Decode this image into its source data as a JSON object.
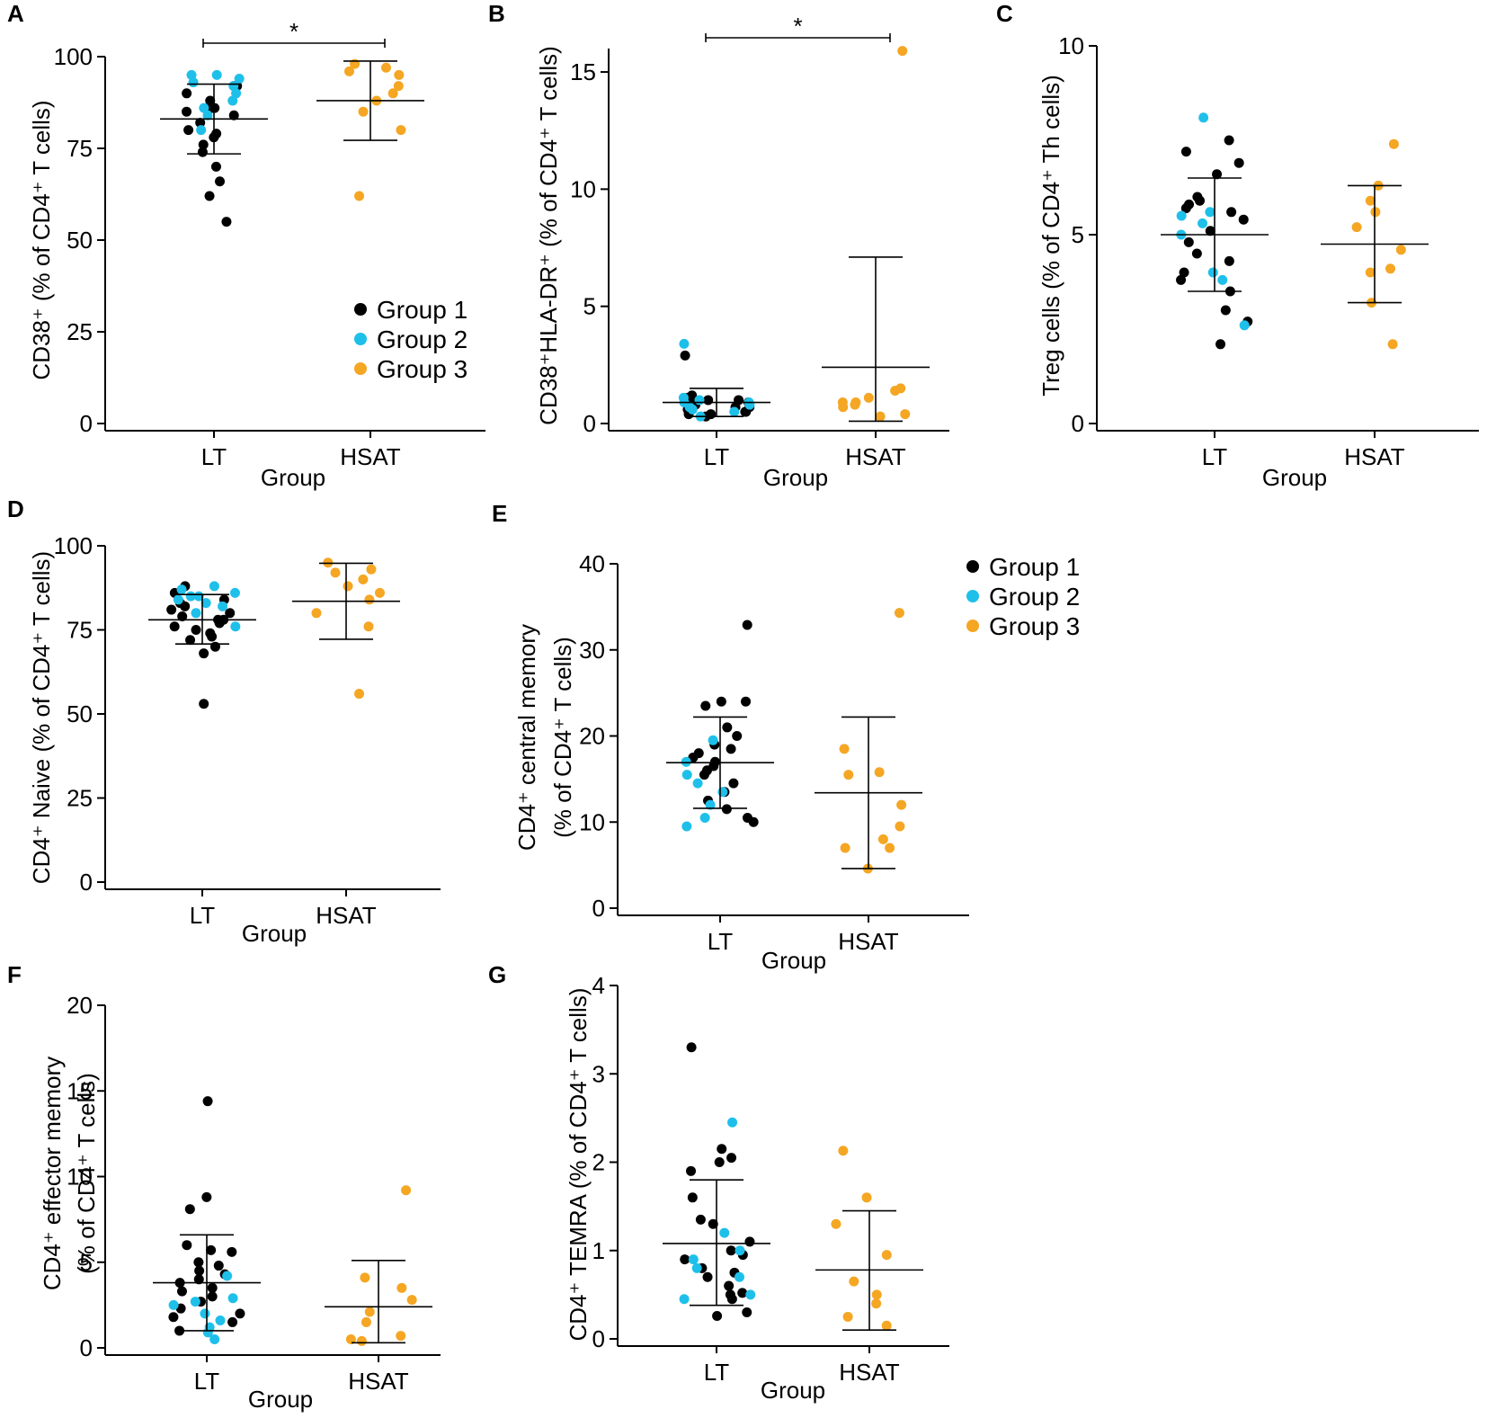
{
  "figure": {
    "colors": {
      "group1": "#000000",
      "group2": "#1ec0ea",
      "group3": "#f5a623"
    },
    "legend": [
      "Group 1",
      "Group 2",
      "Group 3"
    ]
  },
  "chart_data": [
    {
      "id": "A",
      "type": "scatter",
      "panel_label": "A",
      "ylabel": "CD38⁺ (% of CD4⁺ T cells)",
      "xlabel": "Group",
      "categories": [
        "LT",
        "HSAT"
      ],
      "ylim": [
        0,
        100
      ],
      "yticks": [
        "0",
        "25",
        "50",
        "75",
        "100"
      ],
      "significance": {
        "label": "*",
        "between": [
          "LT",
          "HSAT"
        ]
      },
      "legend": true,
      "summary": [
        {
          "category": "LT",
          "mean": 83.0,
          "low": 73.5,
          "high": 92.5
        },
        {
          "category": "HSAT",
          "mean": 88.0,
          "low": 77.2,
          "high": 98.8
        }
      ],
      "series": [
        {
          "name": "Group 1",
          "category": "LT",
          "values": [
            92,
            92,
            90,
            88,
            86,
            86,
            85,
            84,
            82,
            80,
            79,
            78,
            76,
            74,
            70,
            66,
            62,
            55
          ]
        },
        {
          "name": "Group 2",
          "category": "LT",
          "values": [
            95,
            95,
            94,
            93,
            92,
            90,
            88,
            86,
            84,
            80
          ]
        },
        {
          "name": "Group 3",
          "category": "HSAT",
          "values": [
            98,
            97,
            96,
            95,
            92,
            90,
            88,
            85,
            80,
            62
          ]
        }
      ]
    },
    {
      "id": "B",
      "type": "scatter",
      "panel_label": "B",
      "ylabel": "CD38⁺HLA-DR⁺ (% of CD4⁺ T cells)",
      "xlabel": "Group",
      "categories": [
        "LT",
        "HSAT"
      ],
      "ylim": [
        0,
        16
      ],
      "yticks": [
        "0",
        "5",
        "10",
        "15"
      ],
      "significance": {
        "label": "*",
        "between": [
          "LT",
          "HSAT"
        ]
      },
      "legend": false,
      "summary": [
        {
          "category": "LT",
          "mean": 0.9,
          "low": 0.3,
          "high": 1.5
        },
        {
          "category": "HSAT",
          "mean": 2.4,
          "low": 0.1,
          "high": 7.1
        }
      ],
      "series": [
        {
          "name": "Group 1",
          "category": "LT",
          "values": [
            2.9,
            1.2,
            1.1,
            1.0,
            1.0,
            0.9,
            0.9,
            0.8,
            0.8,
            0.7,
            0.7,
            0.6,
            0.6,
            0.5,
            0.5,
            0.4,
            0.4,
            0.3
          ]
        },
        {
          "name": "Group 2",
          "category": "LT",
          "values": [
            3.4,
            1.1,
            1.0,
            0.9,
            0.9,
            0.8,
            0.7,
            0.6,
            0.5,
            0.3
          ]
        },
        {
          "name": "Group 3",
          "category": "HSAT",
          "values": [
            15.9,
            1.5,
            1.4,
            1.1,
            0.9,
            0.9,
            0.8,
            0.7,
            0.4,
            0.3
          ]
        }
      ]
    },
    {
      "id": "C",
      "type": "scatter",
      "panel_label": "C",
      "ylabel": "Treg cells (% of CD4⁺ Th cells)",
      "xlabel": "Group",
      "categories": [
        "LT",
        "HSAT"
      ],
      "ylim": [
        0,
        10
      ],
      "yticks": [
        "0",
        "5",
        "10"
      ],
      "significance": null,
      "legend": false,
      "summary": [
        {
          "category": "LT",
          "mean": 5.0,
          "low": 3.5,
          "high": 6.5
        },
        {
          "category": "HSAT",
          "mean": 4.75,
          "low": 3.2,
          "high": 6.3
        }
      ],
      "series": [
        {
          "name": "Group 1",
          "category": "LT",
          "values": [
            7.5,
            7.2,
            6.9,
            6.6,
            6.0,
            5.9,
            5.8,
            5.7,
            5.6,
            5.4,
            5.1,
            4.8,
            4.5,
            4.3,
            4.0,
            3.8,
            3.5,
            3.0,
            2.7,
            2.1
          ]
        },
        {
          "name": "Group 2",
          "category": "LT",
          "values": [
            8.1,
            5.6,
            5.5,
            5.3,
            5.0,
            4.0,
            3.8,
            2.6
          ]
        },
        {
          "name": "Group 3",
          "category": "HSAT",
          "values": [
            7.4,
            6.3,
            5.9,
            5.6,
            5.2,
            4.6,
            4.1,
            4.0,
            3.2,
            2.1
          ]
        }
      ]
    },
    {
      "id": "D",
      "type": "scatter",
      "panel_label": "D",
      "ylabel": "CD4⁺ Naive (% of CD4⁺ T cells)",
      "xlabel": "Group",
      "categories": [
        "LT",
        "HSAT"
      ],
      "ylim": [
        0,
        100
      ],
      "yticks": [
        "0",
        "25",
        "50",
        "75",
        "100"
      ],
      "significance": null,
      "legend": false,
      "summary": [
        {
          "category": "LT",
          "mean": 78.0,
          "low": 70.8,
          "high": 85.5
        },
        {
          "category": "HSAT",
          "mean": 83.5,
          "low": 72.2,
          "high": 94.8
        }
      ],
      "series": [
        {
          "name": "Group 1",
          "category": "LT",
          "values": [
            88,
            86,
            84,
            83,
            82,
            81,
            80,
            79,
            78,
            78,
            77,
            76,
            75,
            74,
            73,
            72,
            70,
            68,
            53
          ]
        },
        {
          "name": "Group 2",
          "category": "LT",
          "values": [
            88,
            87,
            86,
            85,
            85,
            84,
            83,
            82,
            80,
            76
          ]
        },
        {
          "name": "Group 3",
          "category": "HSAT",
          "values": [
            95,
            93,
            92,
            90,
            88,
            86,
            84,
            80,
            76,
            56
          ]
        }
      ]
    },
    {
      "id": "E",
      "type": "scatter",
      "panel_label": "E",
      "ylabel": [
        "CD4⁺ central memory",
        "(% of CD4⁺ T cells)"
      ],
      "xlabel": "Group",
      "categories": [
        "LT",
        "HSAT"
      ],
      "ylim": [
        0,
        40
      ],
      "yticks": [
        "0",
        "10",
        "20",
        "30",
        "40"
      ],
      "significance": null,
      "legend": true,
      "summary": [
        {
          "category": "LT",
          "mean": 16.9,
          "low": 11.6,
          "high": 22.2
        },
        {
          "category": "HSAT",
          "mean": 13.4,
          "low": 4.6,
          "high": 22.2
        }
      ],
      "series": [
        {
          "name": "Group 1",
          "category": "LT",
          "values": [
            32.9,
            24.0,
            24.0,
            23.5,
            21.0,
            20.0,
            19.0,
            18.5,
            18.0,
            17.5,
            17.0,
            16.5,
            16.0,
            15.5,
            14.5,
            13.5,
            12.5,
            11.5,
            10.5,
            10.0
          ]
        },
        {
          "name": "Group 2",
          "category": "LT",
          "values": [
            19.5,
            17.0,
            15.5,
            14.5,
            13.5,
            12.0,
            10.5,
            9.5
          ]
        },
        {
          "name": "Group 3",
          "category": "HSAT",
          "values": [
            34.3,
            18.5,
            15.8,
            15.5,
            12.0,
            9.5,
            8.0,
            7.0,
            7.0,
            4.6
          ]
        }
      ]
    },
    {
      "id": "F",
      "type": "scatter",
      "panel_label": "F",
      "ylabel": [
        "CD4⁺ effector memory",
        "(% of CD4⁺ T cells)"
      ],
      "xlabel": "Group",
      "categories": [
        "LT",
        "HSAT"
      ],
      "ylim": [
        0,
        20
      ],
      "yticks": [
        "0",
        "5",
        "10",
        "15",
        "20"
      ],
      "significance": null,
      "legend": false,
      "summary": [
        {
          "category": "LT",
          "mean": 3.8,
          "low": 1.0,
          "high": 6.6
        },
        {
          "category": "HSAT",
          "mean": 2.4,
          "low": 0.3,
          "high": 5.1
        }
      ],
      "series": [
        {
          "name": "Group 1",
          "category": "LT",
          "values": [
            14.4,
            8.8,
            8.1,
            6.0,
            5.7,
            5.6,
            5.0,
            4.8,
            4.5,
            4.3,
            4.0,
            3.8,
            3.5,
            3.3,
            3.0,
            2.7,
            2.3,
            2.0,
            1.8,
            1.5,
            1.0
          ]
        },
        {
          "name": "Group 2",
          "category": "LT",
          "values": [
            4.2,
            2.9,
            2.7,
            2.5,
            2.0,
            1.6,
            1.2,
            0.9,
            0.5
          ]
        },
        {
          "name": "Group 3",
          "category": "HSAT",
          "values": [
            9.2,
            4.1,
            3.5,
            2.8,
            2.1,
            1.5,
            0.7,
            0.5,
            0.4
          ]
        }
      ]
    },
    {
      "id": "G",
      "type": "scatter",
      "panel_label": "G",
      "ylabel": "CD4⁺ TEMRA (% of CD4⁺ T cells)",
      "xlabel": "Group",
      "categories": [
        "LT",
        "HSAT"
      ],
      "ylim": [
        0,
        4
      ],
      "yticks": [
        "0",
        "1",
        "2",
        "3",
        "4"
      ],
      "significance": null,
      "legend": false,
      "summary": [
        {
          "category": "LT",
          "mean": 1.08,
          "low": 0.38,
          "high": 1.8
        },
        {
          "category": "HSAT",
          "mean": 0.78,
          "low": 0.1,
          "high": 1.45
        }
      ],
      "series": [
        {
          "name": "Group 1",
          "category": "LT",
          "values": [
            3.3,
            2.15,
            2.05,
            2.0,
            1.9,
            1.6,
            1.35,
            1.3,
            1.1,
            1.0,
            0.95,
            0.9,
            0.8,
            0.75,
            0.7,
            0.6,
            0.52,
            0.5,
            0.45,
            0.3,
            0.26
          ]
        },
        {
          "name": "Group 2",
          "category": "LT",
          "values": [
            2.45,
            1.2,
            1.0,
            0.9,
            0.8,
            0.7,
            0.5,
            0.45
          ]
        },
        {
          "name": "Group 3",
          "category": "HSAT",
          "values": [
            2.13,
            1.6,
            1.3,
            0.95,
            0.65,
            0.5,
            0.4,
            0.25,
            0.15
          ]
        }
      ]
    }
  ]
}
